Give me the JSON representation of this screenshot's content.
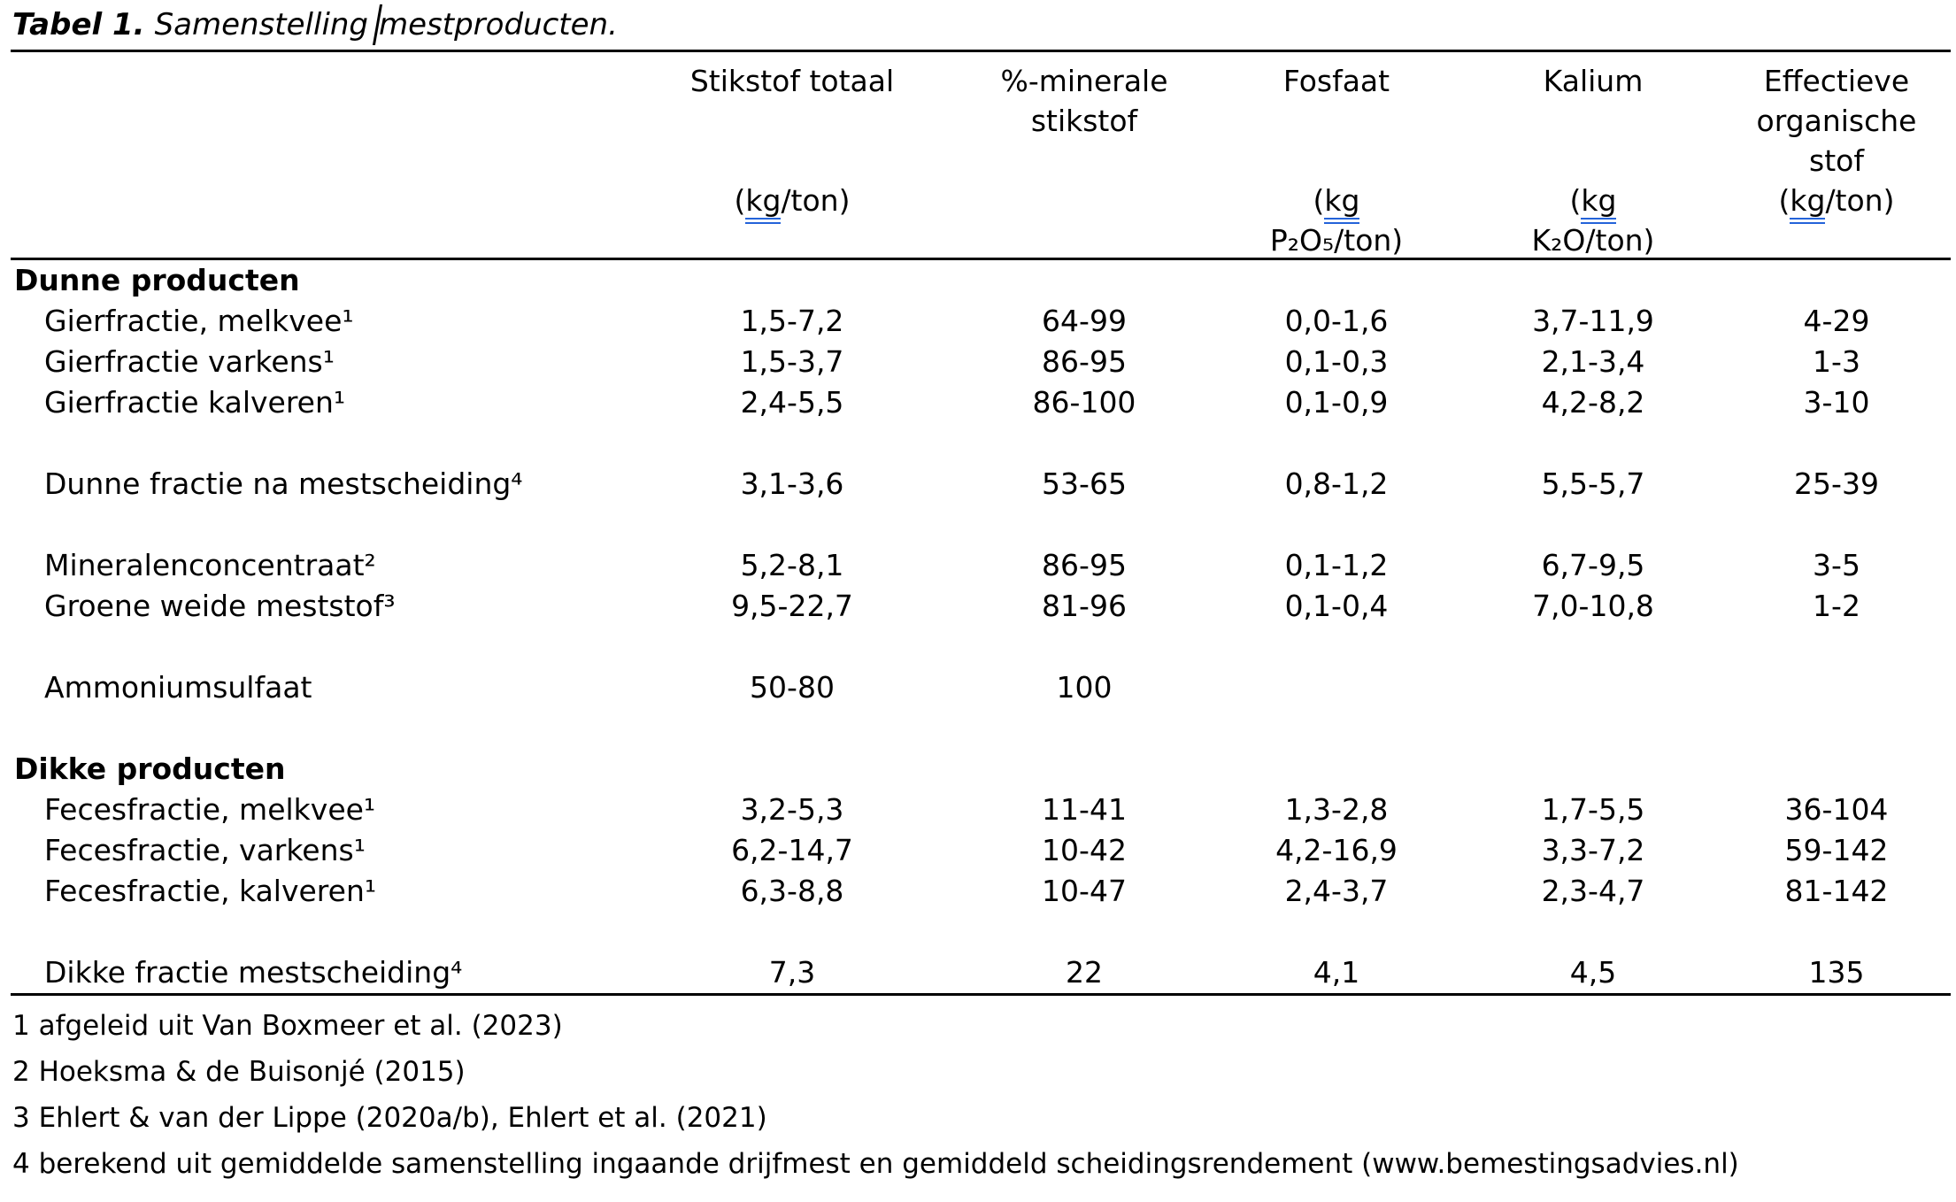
{
  "document": {
    "title": {
      "label": "Tabel 1.",
      "caption_before_caret": "Samenstelling",
      "caption_after_caret": "mestproducten."
    }
  },
  "colors": {
    "text": "#000000",
    "background": "#FFFFFF",
    "rule": "#000000",
    "spellcheck_underline": "#2463D9"
  },
  "table": {
    "columns": [
      {
        "name1": "",
        "name2": "",
        "name3": "",
        "u_pre": "",
        "u_kg": "",
        "u_post": "",
        "u_line2": ""
      },
      {
        "name1": "Stikstof totaal",
        "name2": "",
        "name3": "",
        "u_pre": "(",
        "u_kg": "kg",
        "u_post": "/ton)",
        "u_line2": ""
      },
      {
        "name1": "%-minerale",
        "name2": "stikstof",
        "name3": "",
        "u_pre": "",
        "u_kg": "",
        "u_post": "",
        "u_line2": ""
      },
      {
        "name1": "Fosfaat",
        "name2": "",
        "name3": "",
        "u_pre": "(",
        "u_kg": "kg",
        "u_post": "",
        "u_line2": "P₂O₅/ton)"
      },
      {
        "name1": "Kalium",
        "name2": "",
        "name3": "",
        "u_pre": "(",
        "u_kg": "kg",
        "u_post": "",
        "u_line2": "K₂O/ton)"
      },
      {
        "name1": "Effectieve",
        "name2": "organische",
        "name3": "stof",
        "u_pre": "(",
        "u_kg": "kg",
        "u_post": "/ton)",
        "u_line2": ""
      }
    ],
    "rows": [
      {
        "type": "section",
        "label": "Dunne producten",
        "cells": [
          "",
          "",
          "",
          "",
          ""
        ]
      },
      {
        "type": "item",
        "label": "Gierfractie, melkvee¹",
        "cells": [
          "1,5-7,2",
          "64-99",
          "0,0-1,6",
          "3,7-11,9",
          "4-29"
        ]
      },
      {
        "type": "item",
        "label": "Gierfractie varkens¹",
        "cells": [
          "1,5-3,7",
          "86-95",
          "0,1-0,3",
          "2,1-3,4",
          "1-3"
        ]
      },
      {
        "type": "item",
        "label": "Gierfractie kalveren¹",
        "cells": [
          "2,4-5,5",
          "86-100",
          "0,1-0,9",
          "4,2-8,2",
          "3-10"
        ]
      },
      {
        "type": "spacer",
        "label": "",
        "cells": [
          "",
          "",
          "",
          "",
          ""
        ]
      },
      {
        "type": "item",
        "label": "Dunne fractie na mestscheiding⁴",
        "cells": [
          "3,1-3,6",
          "53-65",
          "0,8-1,2",
          "5,5-5,7",
          "25-39"
        ]
      },
      {
        "type": "spacer",
        "label": "",
        "cells": [
          "",
          "",
          "",
          "",
          ""
        ]
      },
      {
        "type": "item",
        "label": "Mineralenconcentraat²",
        "cells": [
          "5,2-8,1",
          "86-95",
          "0,1-1,2",
          "6,7-9,5",
          "3-5"
        ]
      },
      {
        "type": "item",
        "label": "Groene weide meststof³",
        "cells": [
          "9,5-22,7",
          "81-96",
          "0,1-0,4",
          "7,0-10,8",
          "1-2"
        ]
      },
      {
        "type": "spacer",
        "label": "",
        "cells": [
          "",
          "",
          "",
          "",
          ""
        ]
      },
      {
        "type": "item",
        "label": "Ammoniumsulfaat",
        "cells": [
          "50-80",
          "100",
          "",
          "",
          ""
        ]
      },
      {
        "type": "spacer",
        "label": "",
        "cells": [
          "",
          "",
          "",
          "",
          ""
        ]
      },
      {
        "type": "section",
        "label": "Dikke producten",
        "cells": [
          "",
          "",
          "",
          "",
          ""
        ]
      },
      {
        "type": "item",
        "label": "Fecesfractie, melkvee¹",
        "cells": [
          "3,2-5,3",
          "11-41",
          "1,3-2,8",
          "1,7-5,5",
          "36-104"
        ]
      },
      {
        "type": "item",
        "label": "Fecesfractie, varkens¹",
        "cells": [
          "6,2-14,7",
          "10-42",
          "4,2-16,9",
          "3,3-7,2",
          "59-142"
        ]
      },
      {
        "type": "item",
        "label": "Fecesfractie, kalveren¹",
        "cells": [
          "6,3-8,8",
          "10-47",
          "2,4-3,7",
          "2,3-4,7",
          "81-142"
        ]
      },
      {
        "type": "spacer",
        "label": "",
        "cells": [
          "",
          "",
          "",
          "",
          ""
        ]
      },
      {
        "type": "item",
        "label": "Dikke fractie mestscheiding⁴",
        "cells": [
          "7,3",
          "22",
          "4,1",
          "4,5",
          "135"
        ]
      }
    ],
    "footnotes": [
      "1 afgeleid uit Van Boxmeer et al. (2023)",
      "2 Hoeksma & de Buisonjé (2015)",
      "3 Ehlert & van der Lippe (2020a/b), Ehlert et al. (2021)",
      "4 berekend uit gemiddelde samenstelling ingaande drijfmest en gemiddeld scheidingsrendement (www.bemestingsadvies.nl)"
    ]
  }
}
